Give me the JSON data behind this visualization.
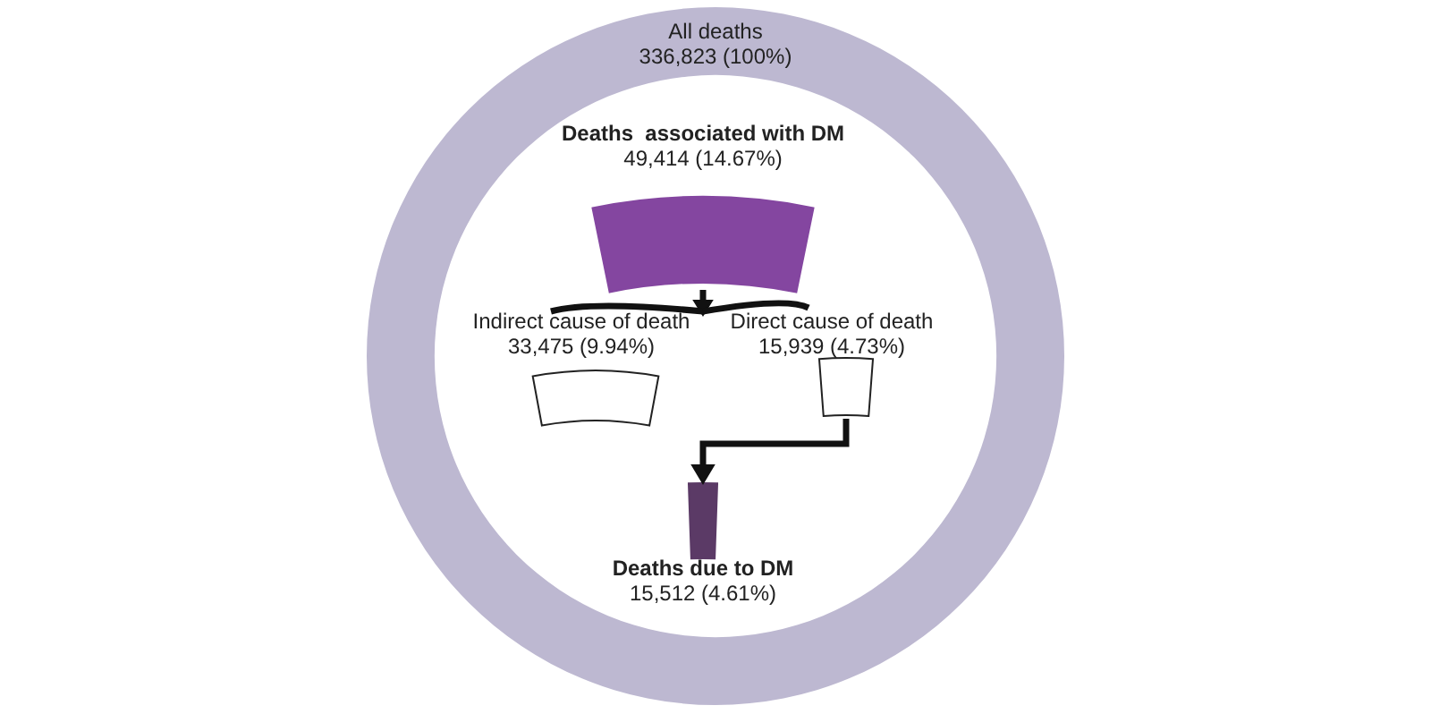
{
  "chart_data": {
    "type": "other",
    "categories": [
      "All deaths",
      "Deaths  associated with DM",
      "Indirect cause of death",
      "Direct cause of death",
      "Deaths due to DM"
    ],
    "values": [
      336823,
      49414,
      33475,
      15939,
      15512
    ],
    "value_labels": [
      "336,823 (100%)",
      "49,414 (14.67%)",
      "33,475 (9.94%)",
      "15,939 (4.73%)",
      "15,512 (4.61%)"
    ],
    "colors": [
      "#bdb8d1",
      "#8446a0",
      "#ffffff",
      "#ffffff",
      "#5b3a66"
    ]
  }
}
